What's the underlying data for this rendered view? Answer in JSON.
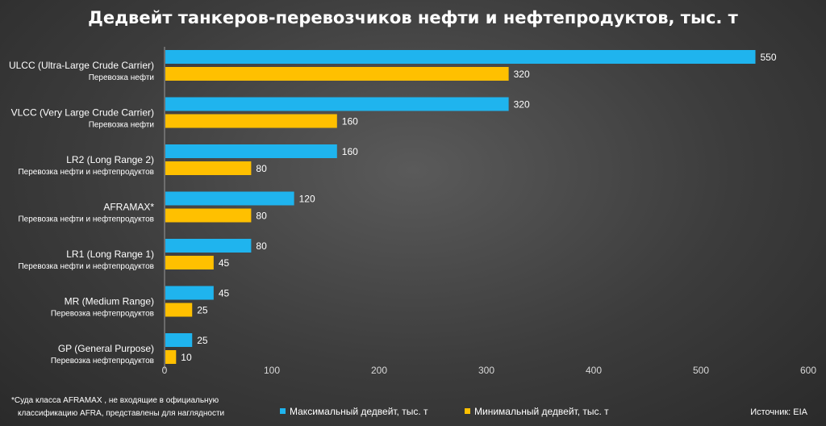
{
  "chart_data": {
    "type": "bar",
    "orientation": "horizontal",
    "title": "Дедвейт танкеров-перевозчиков нефти и нефтепродуктов, тыс. т",
    "categories": [
      {
        "name": "ULCC (Ultra-Large Crude Carrier)",
        "sub": "Перевозка нефти"
      },
      {
        "name": "VLCC (Very Large Crude Carrier)",
        "sub": "Перевозка нефти"
      },
      {
        "name": "LR2 (Long Range 2)",
        "sub": "Перевозка нефти и нефтепродуктов"
      },
      {
        "name": "AFRAMAX*",
        "sub": "Перевозка нефти и нефтепродуктов"
      },
      {
        "name": "LR1 (Long Range 1)",
        "sub": "Перевозка нефти и нефтепродуктов"
      },
      {
        "name": "MR (Medium Range)",
        "sub": "Перевозка нефтепродуктов"
      },
      {
        "name": "GP (General Purpose)",
        "sub": "Перевозка нефтепродуктов"
      }
    ],
    "series": [
      {
        "name": "Максимальный дедвейт, тыс. т",
        "color": "#1fb4ee",
        "values": [
          550,
          320,
          160,
          120,
          80,
          45,
          25
        ]
      },
      {
        "name": "Минимальный дедвейт, тыс. т",
        "color": "#ffc000",
        "values": [
          320,
          160,
          80,
          80,
          45,
          25,
          10
        ]
      }
    ],
    "xlim": [
      0,
      600
    ],
    "xticks": [
      0,
      100,
      200,
      300,
      400,
      500,
      600
    ],
    "grid": false,
    "legend_position": "bottom"
  },
  "footnote": [
    "*Суда класса AFRAMAX , не входящие в официальную",
    "классификацию AFRA, представлены для наглядности"
  ],
  "source": "Источник: EIA"
}
